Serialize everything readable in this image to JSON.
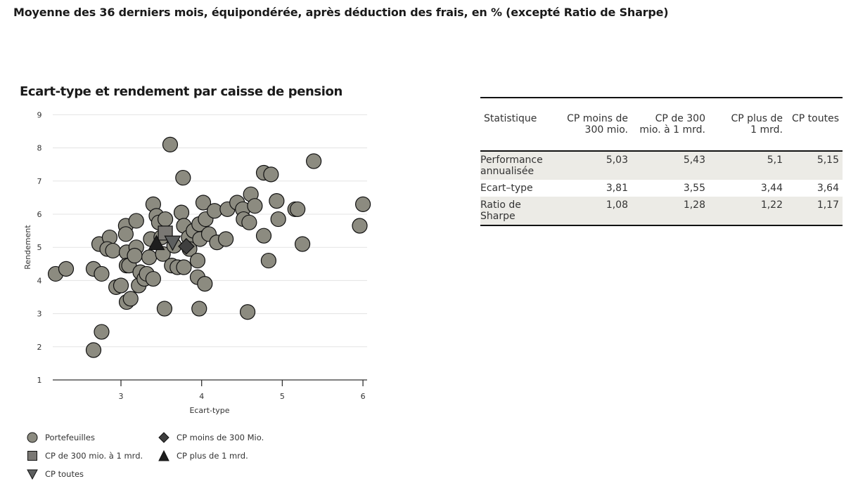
{
  "page": {
    "title": "Moyenne des 36 derniers mois, équipondérée, après déduction des frais, en % (excepté Ratio de Sharpe)"
  },
  "colors": {
    "portfolio_fill": "#8c8b80",
    "cp_300_1mrd_fill": "#7a7874",
    "cp_toutes_fill": "#5d5f5f",
    "cp_moins_300_fill": "#3f3f3f",
    "cp_plus_1mrd_fill": "#1e1e1e",
    "marker_stroke": "#111111",
    "grid": "#e3e3e3",
    "table_shade": "#ecebe6"
  },
  "chart_data": {
    "type": "scatter",
    "title": "Ecart-type et rendement par caisse de pension",
    "xlabel": "Ecart-type",
    "ylabel": "Rendement",
    "xlim": [
      2.15,
      6.05
    ],
    "ylim": [
      1,
      9
    ],
    "x_ticks": [
      3,
      4,
      5,
      6
    ],
    "y_ticks": [
      1,
      2,
      3,
      4,
      5,
      6,
      7,
      8,
      9
    ],
    "grid": "horizontal",
    "legend_position": "bottom",
    "legend": [
      {
        "label": "Portefeuilles",
        "marker": "circle"
      },
      {
        "label": "CP moins de 300 Mio.",
        "marker": "diamond"
      },
      {
        "label": "CP de 300 mio. à 1 mrd.",
        "marker": "square"
      },
      {
        "label": "CP plus de 1 mrd.",
        "marker": "triangle-up"
      },
      {
        "label": "CP toutes",
        "marker": "triangle-down"
      }
    ],
    "series": [
      {
        "name": "Portefeuilles",
        "marker": "circle",
        "points": [
          [
            2.19,
            4.2
          ],
          [
            2.32,
            4.35
          ],
          [
            2.66,
            1.9
          ],
          [
            2.76,
            2.45
          ],
          [
            2.66,
            4.35
          ],
          [
            2.76,
            4.2
          ],
          [
            2.73,
            5.1
          ],
          [
            2.86,
            5.3
          ],
          [
            2.83,
            4.95
          ],
          [
            2.9,
            4.9
          ],
          [
            2.94,
            3.8
          ],
          [
            3.0,
            3.85
          ],
          [
            3.07,
            3.35
          ],
          [
            3.12,
            3.45
          ],
          [
            3.06,
            5.65
          ],
          [
            3.06,
            5.4
          ],
          [
            3.19,
            5.8
          ],
          [
            3.07,
            4.85
          ],
          [
            3.07,
            4.45
          ],
          [
            3.1,
            4.45
          ],
          [
            3.19,
            5.0
          ],
          [
            3.17,
            4.75
          ],
          [
            3.22,
            3.85
          ],
          [
            3.24,
            4.25
          ],
          [
            3.29,
            4.05
          ],
          [
            3.32,
            4.2
          ],
          [
            3.35,
            4.7
          ],
          [
            3.37,
            5.25
          ],
          [
            3.4,
            6.3
          ],
          [
            3.44,
            5.95
          ],
          [
            3.4,
            4.05
          ],
          [
            3.47,
            5.75
          ],
          [
            3.5,
            5.3
          ],
          [
            3.55,
            5.85
          ],
          [
            3.61,
            8.1
          ],
          [
            3.54,
            3.15
          ],
          [
            3.52,
            4.8
          ],
          [
            3.63,
            4.45
          ],
          [
            3.66,
            5.05
          ],
          [
            3.7,
            4.4
          ],
          [
            3.75,
            6.05
          ],
          [
            3.77,
            7.1
          ],
          [
            3.78,
            5.65
          ],
          [
            3.78,
            4.4
          ],
          [
            3.84,
            5.3
          ],
          [
            3.85,
            4.95
          ],
          [
            3.9,
            5.5
          ],
          [
            3.95,
            4.6
          ],
          [
            3.95,
            4.1
          ],
          [
            3.97,
            3.15
          ],
          [
            3.98,
            5.25
          ],
          [
            3.97,
            5.7
          ],
          [
            4.02,
            6.35
          ],
          [
            4.04,
            3.9
          ],
          [
            4.05,
            5.85
          ],
          [
            4.09,
            5.4
          ],
          [
            4.16,
            6.1
          ],
          [
            4.19,
            5.15
          ],
          [
            4.3,
            5.25
          ],
          [
            4.32,
            6.15
          ],
          [
            4.44,
            6.35
          ],
          [
            4.51,
            6.15
          ],
          [
            4.52,
            5.85
          ],
          [
            4.59,
            5.75
          ],
          [
            4.57,
            3.05
          ],
          [
            4.61,
            6.6
          ],
          [
            4.66,
            6.25
          ],
          [
            4.77,
            5.35
          ],
          [
            4.77,
            7.25
          ],
          [
            4.86,
            7.2
          ],
          [
            4.83,
            4.6
          ],
          [
            4.93,
            6.4
          ],
          [
            4.95,
            5.85
          ],
          [
            5.16,
            6.15
          ],
          [
            5.19,
            6.15
          ],
          [
            5.25,
            5.1
          ],
          [
            5.39,
            7.6
          ],
          [
            5.96,
            5.65
          ],
          [
            6.0,
            6.3
          ]
        ]
      },
      {
        "name": "CP de 300 mio. à 1 mrd.",
        "marker": "square",
        "points": [
          [
            3.55,
            5.43
          ]
        ]
      },
      {
        "name": "CP plus de 1 mrd.",
        "marker": "triangle-up",
        "points": [
          [
            3.44,
            5.1
          ]
        ]
      },
      {
        "name": "CP toutes",
        "marker": "triangle-down",
        "points": [
          [
            3.64,
            5.15
          ]
        ]
      },
      {
        "name": "CP moins de 300 Mio.",
        "marker": "diamond",
        "points": [
          [
            3.81,
            5.03
          ]
        ]
      }
    ]
  },
  "table": {
    "headers": [
      {
        "line1": "Statistique",
        "line2": ""
      },
      {
        "line1": "CP moins de",
        "line2": "300 mio."
      },
      {
        "line1": "CP de 300",
        "line2": "mio. à 1 mrd."
      },
      {
        "line1": "CP plus de",
        "line2": "1 mrd."
      },
      {
        "line1": "CP toutes",
        "line2": ""
      }
    ],
    "rows": [
      {
        "label1": "Performance",
        "label2": "annualisée",
        "values": [
          "5,03",
          "5,43",
          "5,1",
          "5,15"
        ]
      },
      {
        "label1": "Ecart–type",
        "label2": "",
        "values": [
          "3,81",
          "3,55",
          "3,44",
          "3,64"
        ]
      },
      {
        "label1": "Ratio de",
        "label2": "Sharpe",
        "values": [
          "1,08",
          "1,28",
          "1,22",
          "1,17"
        ]
      }
    ]
  }
}
